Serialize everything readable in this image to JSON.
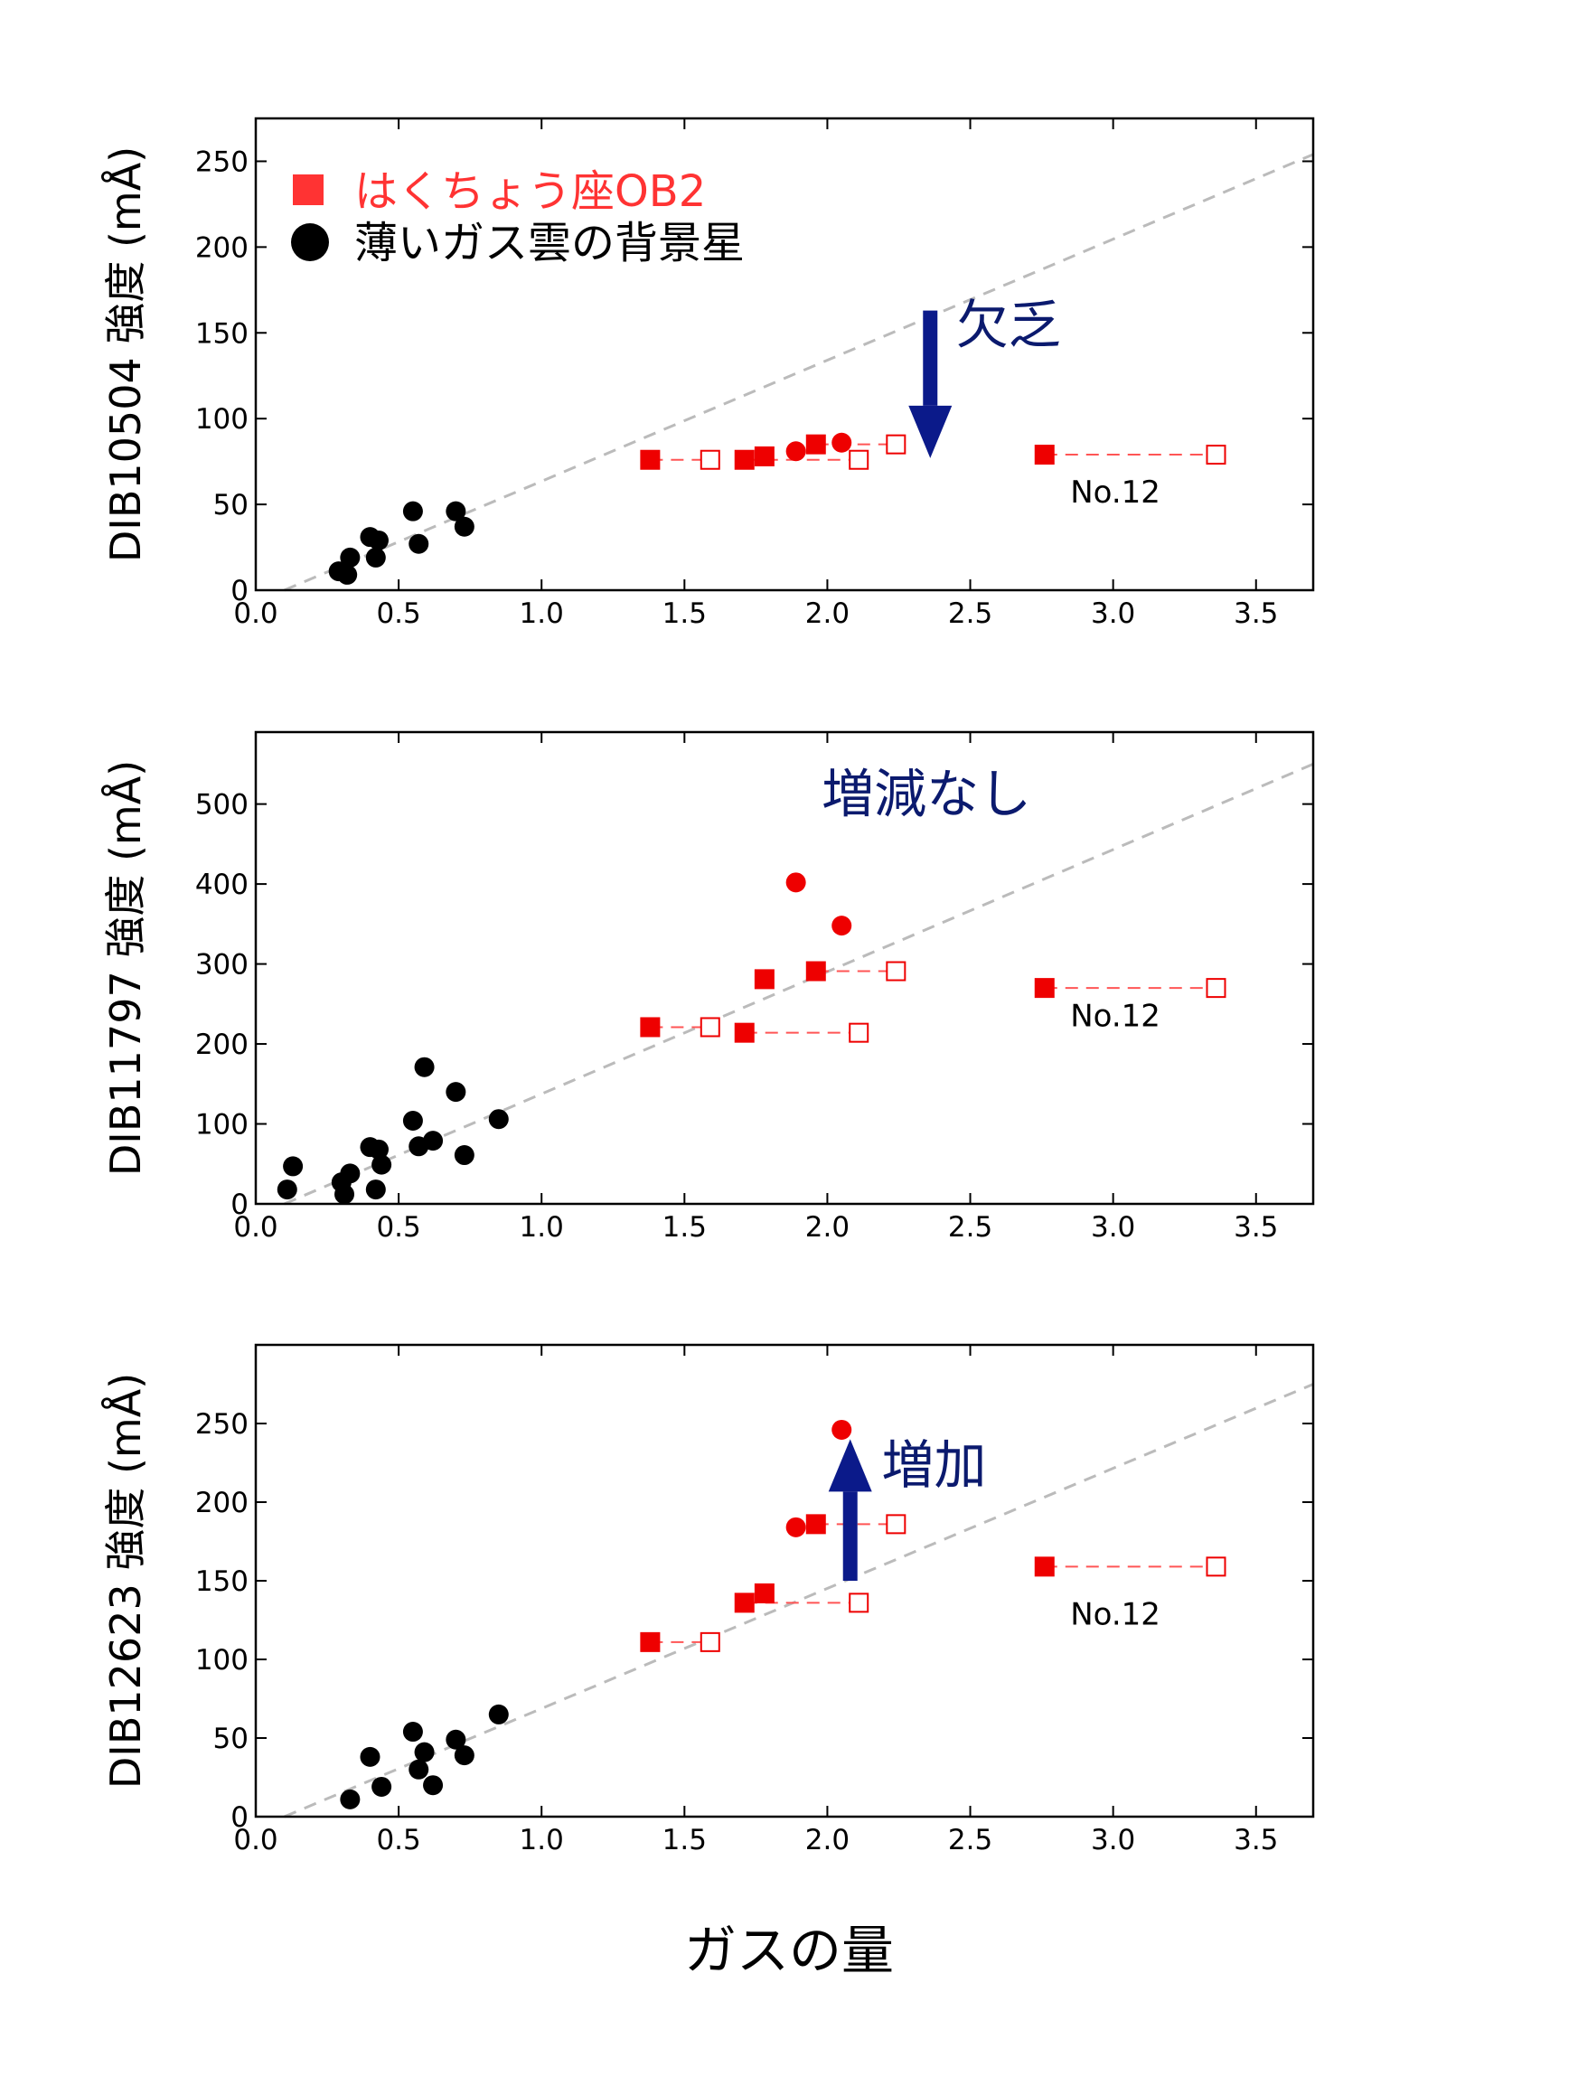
{
  "xlabel": "ガスの量",
  "legend": [
    {
      "label": "はくちょう座OB2",
      "marker": "square",
      "color": "#ff3333"
    },
    {
      "label": "薄いガス雲の背景星",
      "marker": "circle",
      "color": "#000000"
    }
  ],
  "colors": {
    "red": "#ee0000",
    "black": "#000000",
    "arrow": "#0b1a8a",
    "annot": "#0b1a6e",
    "guide": "#bbbbbb"
  },
  "chart_data": [
    {
      "type": "scatter",
      "ylabel": "DIB10504 強度 (mÅ)",
      "xlim": [
        0.0,
        3.7
      ],
      "ylim": [
        0,
        275
      ],
      "xticks": [
        "0.0",
        "0.5",
        "1.0",
        "1.5",
        "2.0",
        "2.5",
        "3.0",
        "3.5"
      ],
      "yticks": [
        "0",
        "50",
        "100",
        "150",
        "200",
        "250"
      ],
      "guide_line": [
        [
          0.1,
          0
        ],
        [
          3.7,
          254
        ]
      ],
      "series": [
        {
          "name": "薄いガス雲の背景星",
          "marker": "circle",
          "color": "black",
          "points": [
            [
              0.29,
              11
            ],
            [
              0.32,
              9
            ],
            [
              0.33,
              19
            ],
            [
              0.4,
              31
            ],
            [
              0.42,
              19
            ],
            [
              0.43,
              29
            ],
            [
              0.55,
              46
            ],
            [
              0.57,
              27
            ],
            [
              0.7,
              46
            ],
            [
              0.73,
              37
            ]
          ]
        },
        {
          "name": "はくちょう座OB2",
          "marker": "square",
          "color": "red",
          "points": [
            [
              1.38,
              76
            ],
            [
              1.71,
              76
            ],
            [
              1.78,
              78
            ],
            [
              1.96,
              85
            ],
            [
              2.76,
              79
            ]
          ]
        },
        {
          "marker": "circle",
          "color": "red",
          "points": [
            [
              1.89,
              81
            ],
            [
              2.05,
              86
            ]
          ]
        },
        {
          "marker": "open-square",
          "color": "red",
          "points": [
            [
              1.59,
              76
            ],
            [
              2.11,
              76
            ],
            [
              2.24,
              85
            ],
            [
              3.36,
              79
            ]
          ]
        }
      ],
      "connectors": [
        [
          1.38,
          1.59,
          76
        ],
        [
          1.71,
          2.11,
          76
        ],
        [
          1.96,
          2.24,
          85
        ],
        [
          2.76,
          3.36,
          79
        ]
      ],
      "arrow": {
        "direction": "down",
        "x": 2.36,
        "y_from": 163,
        "y_to": 77
      },
      "annotation": {
        "text": "欠乏",
        "x": 2.45,
        "y": 144
      },
      "note": {
        "text": "No.12",
        "x": 2.85,
        "y": 51
      }
    },
    {
      "type": "scatter",
      "ylabel": "DIB11797 強度 (mÅ)",
      "xlim": [
        0.0,
        3.7
      ],
      "ylim": [
        0,
        590
      ],
      "xticks": [
        "0.0",
        "0.5",
        "1.0",
        "1.5",
        "2.0",
        "2.5",
        "3.0",
        "3.5"
      ],
      "yticks": [
        "0",
        "100",
        "200",
        "300",
        "400",
        "500"
      ],
      "guide_line": [
        [
          0.1,
          0
        ],
        [
          3.7,
          550
        ]
      ],
      "series": [
        {
          "name": "薄いガス雲の背景星",
          "marker": "circle",
          "color": "black",
          "points": [
            [
              0.11,
              18
            ],
            [
              0.13,
              47
            ],
            [
              0.3,
              27
            ],
            [
              0.31,
              12
            ],
            [
              0.33,
              38
            ],
            [
              0.4,
              71
            ],
            [
              0.42,
              18
            ],
            [
              0.43,
              68
            ],
            [
              0.44,
              49
            ],
            [
              0.55,
              104
            ],
            [
              0.57,
              72
            ],
            [
              0.59,
              171
            ],
            [
              0.62,
              79
            ],
            [
              0.7,
              140
            ],
            [
              0.73,
              61
            ],
            [
              0.85,
              106
            ]
          ]
        },
        {
          "name": "はくちょう座OB2",
          "marker": "square",
          "color": "red",
          "points": [
            [
              1.38,
              221
            ],
            [
              1.71,
              214
            ],
            [
              1.78,
              281
            ],
            [
              1.96,
              291
            ],
            [
              2.76,
              270
            ]
          ]
        },
        {
          "marker": "circle",
          "color": "red",
          "points": [
            [
              1.89,
              402
            ],
            [
              2.05,
              348
            ]
          ]
        },
        {
          "marker": "open-square",
          "color": "red",
          "points": [
            [
              1.59,
              221
            ],
            [
              2.11,
              214
            ],
            [
              2.24,
              291
            ],
            [
              3.36,
              270
            ]
          ]
        }
      ],
      "connectors": [
        [
          1.38,
          1.59,
          221
        ],
        [
          1.71,
          2.11,
          214
        ],
        [
          1.96,
          2.24,
          291
        ],
        [
          2.76,
          3.36,
          270
        ]
      ],
      "annotation": {
        "text": "増減なし",
        "x": 1.98,
        "y": 490
      },
      "note": {
        "text": "No.12",
        "x": 2.85,
        "y": 222
      }
    },
    {
      "type": "scatter",
      "ylabel": "DIB12623 強度 (mÅ)",
      "xlim": [
        0.0,
        3.7
      ],
      "ylim": [
        0,
        300
      ],
      "xticks": [
        "0.0",
        "0.5",
        "1.0",
        "1.5",
        "2.0",
        "2.5",
        "3.0",
        "3.5"
      ],
      "yticks": [
        "0",
        "50",
        "100",
        "150",
        "200",
        "250"
      ],
      "guide_line": [
        [
          0.1,
          0
        ],
        [
          3.7,
          275
        ]
      ],
      "series": [
        {
          "name": "薄いガス雲の背景星",
          "marker": "circle",
          "color": "black",
          "points": [
            [
              0.33,
              11
            ],
            [
              0.4,
              38
            ],
            [
              0.44,
              19
            ],
            [
              0.55,
              54
            ],
            [
              0.57,
              30
            ],
            [
              0.59,
              41
            ],
            [
              0.62,
              20
            ],
            [
              0.7,
              49
            ],
            [
              0.73,
              39
            ],
            [
              0.85,
              65
            ]
          ]
        },
        {
          "name": "はくちょう座OB2",
          "marker": "square",
          "color": "red",
          "points": [
            [
              1.38,
              111
            ],
            [
              1.71,
              136
            ],
            [
              1.78,
              142
            ],
            [
              1.96,
              186
            ],
            [
              2.76,
              159
            ]
          ]
        },
        {
          "marker": "circle",
          "color": "red",
          "points": [
            [
              1.89,
              184
            ],
            [
              2.05,
              246
            ]
          ]
        },
        {
          "marker": "open-square",
          "color": "red",
          "points": [
            [
              1.59,
              111
            ],
            [
              2.11,
              136
            ],
            [
              2.24,
              186
            ],
            [
              3.36,
              159
            ]
          ]
        }
      ],
      "connectors": [
        [
          1.38,
          1.59,
          111
        ],
        [
          1.71,
          2.11,
          136
        ],
        [
          1.96,
          2.24,
          186
        ],
        [
          2.76,
          3.36,
          159
        ]
      ],
      "arrow": {
        "direction": "up",
        "x": 2.08,
        "y_from": 150,
        "y_to": 240
      },
      "annotation": {
        "text": "増加",
        "x": 2.19,
        "y": 212
      },
      "note": {
        "text": "No.12",
        "x": 2.85,
        "y": 122
      }
    }
  ]
}
